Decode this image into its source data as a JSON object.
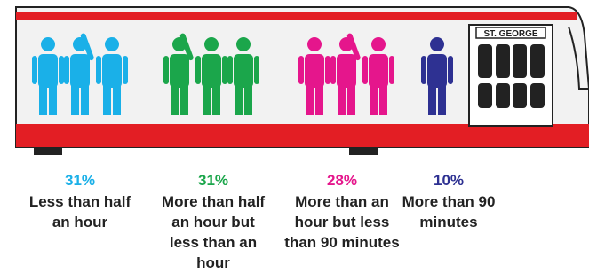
{
  "chart_data": {
    "type": "pictogram",
    "sign": "ST. GEORGE",
    "categories": [
      "Less than half an hour",
      "More than half an hour but less than an hour",
      "More than an hour but less than 90 minutes",
      "More than 90 minutes"
    ],
    "values": [
      31,
      31,
      28,
      10
    ],
    "value_labels": [
      "31%",
      "31%",
      "28%",
      "10%"
    ],
    "colors": [
      "#1ab0e8",
      "#1ba64b",
      "#e5168c",
      "#2e3192"
    ]
  }
}
